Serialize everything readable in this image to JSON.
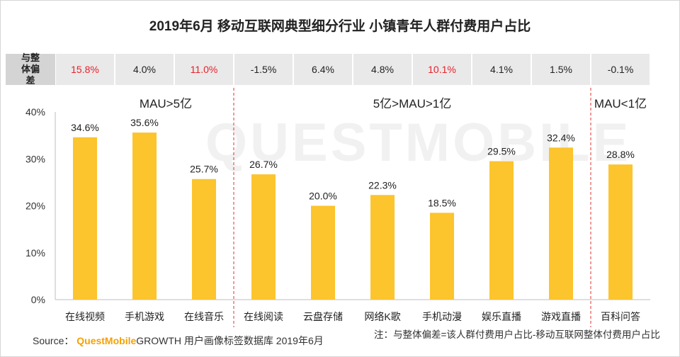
{
  "watermark": "QUESTMOBILE",
  "chart_data": {
    "type": "bar",
    "title": "2019年6月 移动互联网典型细分行业 小镇青年人群付费用户占比",
    "categories": [
      "在线视频",
      "手机游戏",
      "在线音乐",
      "在线阅读",
      "云盘存储",
      "网络K歌",
      "手机动漫",
      "娱乐直播",
      "游戏直播",
      "百科问答"
    ],
    "values": [
      34.6,
      35.6,
      25.7,
      26.7,
      20.0,
      22.3,
      18.5,
      29.5,
      32.4,
      28.8
    ],
    "value_labels": [
      "34.6%",
      "35.6%",
      "25.7%",
      "26.7%",
      "20.0%",
      "22.3%",
      "18.5%",
      "29.5%",
      "32.4%",
      "28.8%"
    ],
    "ylim": [
      0,
      40
    ],
    "yticks": [
      "0%",
      "10%",
      "20%",
      "30%",
      "40%"
    ],
    "grid": false,
    "bar_color": "#fcc42d",
    "groups": [
      {
        "label": "MAU>5亿",
        "start": 0,
        "end": 2
      },
      {
        "label": "5亿>MAU>1亿",
        "start": 3,
        "end": 8
      },
      {
        "label": "MAU<1亿",
        "start": 9,
        "end": 9
      }
    ],
    "deviation": {
      "label": "与整体偏差",
      "values": [
        "15.8%",
        "4.0%",
        "11.0%",
        "-1.5%",
        "6.4%",
        "4.8%",
        "10.1%",
        "4.1%",
        "1.5%",
        "-0.1%"
      ],
      "highlight": [
        true,
        false,
        true,
        false,
        false,
        false,
        true,
        false,
        false,
        false
      ],
      "highlight_color": "#e8202a"
    }
  },
  "source": {
    "prefix": "Source：",
    "brand": "QuestMobile",
    "rest": "GROWTH 用户画像标签数据库 2019年6月"
  },
  "note": "注：与整体偏差=该人群付费用户占比-移动互联网整体付费用户占比"
}
